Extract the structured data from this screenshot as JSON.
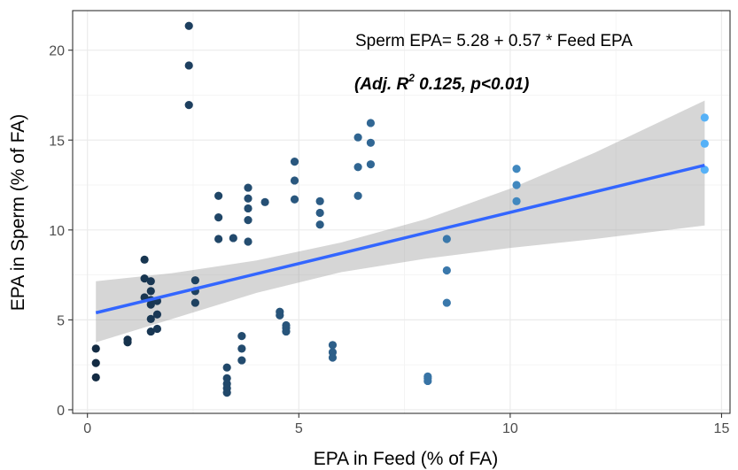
{
  "chart_data": {
    "type": "scatter",
    "xlabel": "EPA in Feed (% of FA)",
    "ylabel": "EPA in Sperm (% of FA)",
    "xlim": [
      -0.35,
      15.2
    ],
    "ylim": [
      -0.2,
      22.2
    ],
    "x_ticks": [
      0,
      5,
      10,
      15
    ],
    "x_tick_labels": [
      "0",
      "5",
      "10",
      "15"
    ],
    "y_ticks": [
      0,
      5,
      10,
      15,
      20
    ],
    "y_tick_labels": [
      "0",
      "5",
      "10",
      "15",
      "20"
    ],
    "grid": true,
    "legend": "none",
    "point_color_scale": {
      "low": "#132B43",
      "high": "#56B1F7"
    },
    "equation_text": "Sperm EPA= 5.28 + 0.57 * Feed EPA",
    "stats_text": {
      "prefix": "(Adj. R",
      "superscript": "2",
      "suffix": " 0.125, p<0.01)"
    },
    "regression": {
      "intercept": 5.28,
      "slope": 0.57,
      "x_range": [
        0.2,
        14.6
      ],
      "line_color": "#3366FF",
      "confidence_band": [
        {
          "x": 0.2,
          "lower": 3.75,
          "upper": 7.15
        },
        {
          "x": 2.0,
          "lower": 5.05,
          "upper": 7.6
        },
        {
          "x": 4.0,
          "lower": 6.5,
          "upper": 8.3
        },
        {
          "x": 6.0,
          "lower": 7.65,
          "upper": 9.3
        },
        {
          "x": 8.0,
          "lower": 8.4,
          "upper": 10.6
        },
        {
          "x": 10.0,
          "lower": 9.0,
          "upper": 12.3
        },
        {
          "x": 12.0,
          "lower": 9.5,
          "upper": 14.3
        },
        {
          "x": 14.6,
          "lower": 10.25,
          "upper": 17.2
        }
      ],
      "band_color": "#999999"
    },
    "points": [
      {
        "x": 0.2,
        "y": 3.4
      },
      {
        "x": 0.2,
        "y": 2.6
      },
      {
        "x": 0.2,
        "y": 1.8
      },
      {
        "x": 0.95,
        "y": 3.9
      },
      {
        "x": 0.95,
        "y": 3.75
      },
      {
        "x": 1.35,
        "y": 8.35
      },
      {
        "x": 1.35,
        "y": 7.3
      },
      {
        "x": 1.35,
        "y": 6.25
      },
      {
        "x": 1.5,
        "y": 7.15
      },
      {
        "x": 1.5,
        "y": 6.6
      },
      {
        "x": 1.5,
        "y": 6.1
      },
      {
        "x": 1.5,
        "y": 5.85
      },
      {
        "x": 1.5,
        "y": 5.05
      },
      {
        "x": 1.5,
        "y": 4.35
      },
      {
        "x": 1.65,
        "y": 6.05
      },
      {
        "x": 1.65,
        "y": 5.3
      },
      {
        "x": 1.65,
        "y": 4.5
      },
      {
        "x": 2.4,
        "y": 21.35
      },
      {
        "x": 2.4,
        "y": 19.15
      },
      {
        "x": 2.4,
        "y": 16.95
      },
      {
        "x": 2.55,
        "y": 7.2
      },
      {
        "x": 2.55,
        "y": 6.6
      },
      {
        "x": 2.55,
        "y": 5.95
      },
      {
        "x": 3.1,
        "y": 11.9
      },
      {
        "x": 3.1,
        "y": 10.7
      },
      {
        "x": 3.1,
        "y": 9.5
      },
      {
        "x": 3.3,
        "y": 2.35
      },
      {
        "x": 3.3,
        "y": 1.75
      },
      {
        "x": 3.3,
        "y": 1.45
      },
      {
        "x": 3.3,
        "y": 1.2
      },
      {
        "x": 3.3,
        "y": 0.95
      },
      {
        "x": 3.45,
        "y": 9.55
      },
      {
        "x": 3.65,
        "y": 4.1
      },
      {
        "x": 3.65,
        "y": 3.4
      },
      {
        "x": 3.65,
        "y": 2.75
      },
      {
        "x": 3.8,
        "y": 12.35
      },
      {
        "x": 3.8,
        "y": 11.75
      },
      {
        "x": 3.8,
        "y": 11.2
      },
      {
        "x": 3.8,
        "y": 10.55
      },
      {
        "x": 3.8,
        "y": 9.35
      },
      {
        "x": 4.2,
        "y": 11.55
      },
      {
        "x": 4.55,
        "y": 5.45
      },
      {
        "x": 4.55,
        "y": 5.25
      },
      {
        "x": 4.7,
        "y": 4.7
      },
      {
        "x": 4.7,
        "y": 4.55
      },
      {
        "x": 4.7,
        "y": 4.35
      },
      {
        "x": 4.9,
        "y": 13.8
      },
      {
        "x": 4.9,
        "y": 12.75
      },
      {
        "x": 4.9,
        "y": 11.7
      },
      {
        "x": 5.5,
        "y": 11.6
      },
      {
        "x": 5.5,
        "y": 10.95
      },
      {
        "x": 5.5,
        "y": 10.3
      },
      {
        "x": 5.8,
        "y": 3.6
      },
      {
        "x": 5.8,
        "y": 3.2
      },
      {
        "x": 5.8,
        "y": 2.9
      },
      {
        "x": 6.4,
        "y": 15.15
      },
      {
        "x": 6.4,
        "y": 13.5
      },
      {
        "x": 6.4,
        "y": 11.9
      },
      {
        "x": 6.7,
        "y": 15.95
      },
      {
        "x": 6.7,
        "y": 14.85
      },
      {
        "x": 6.7,
        "y": 13.65
      },
      {
        "x": 8.05,
        "y": 1.85
      },
      {
        "x": 8.05,
        "y": 1.75
      },
      {
        "x": 8.05,
        "y": 1.6
      },
      {
        "x": 8.5,
        "y": 9.5
      },
      {
        "x": 8.5,
        "y": 7.75
      },
      {
        "x": 8.5,
        "y": 5.95
      },
      {
        "x": 10.15,
        "y": 13.4
      },
      {
        "x": 10.15,
        "y": 12.5
      },
      {
        "x": 10.15,
        "y": 11.6
      },
      {
        "x": 14.6,
        "y": 16.25
      },
      {
        "x": 14.6,
        "y": 14.8
      },
      {
        "x": 14.6,
        "y": 13.35
      }
    ]
  }
}
